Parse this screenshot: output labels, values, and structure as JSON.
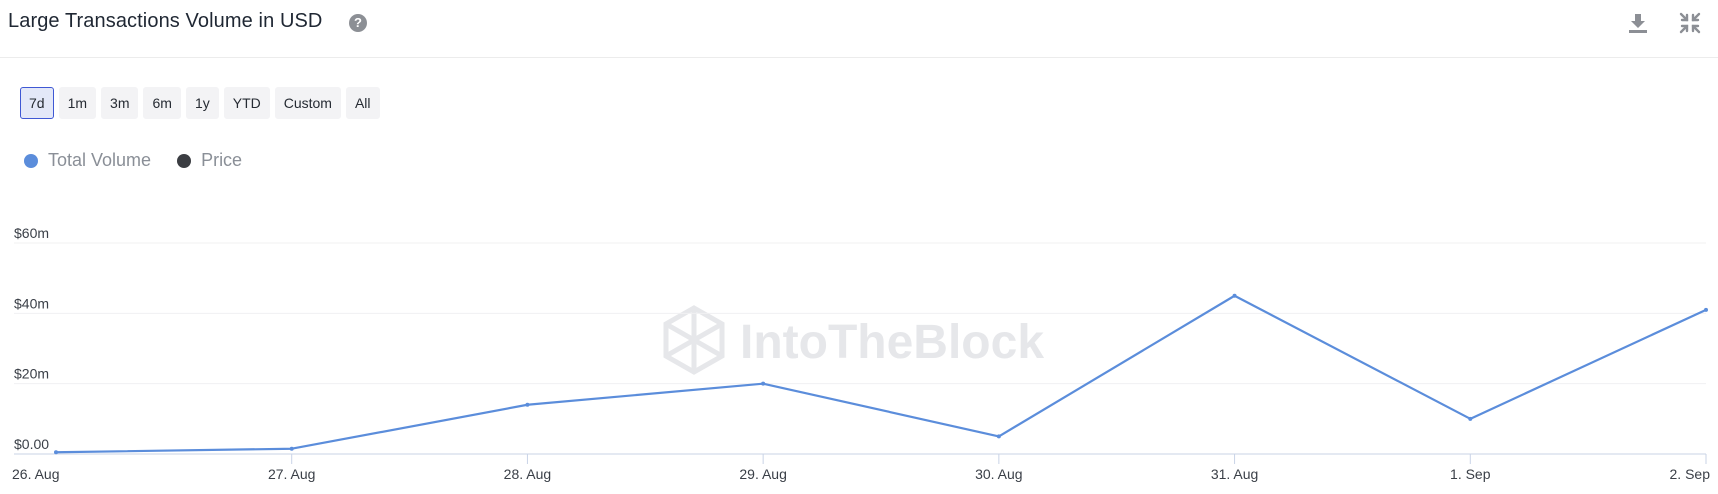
{
  "header": {
    "title": "Large Transactions Volume in USD",
    "help_icon": "question-circle-icon",
    "download_icon": "download-icon",
    "collapse_icon": "collapse-arrows-icon"
  },
  "ranges": [
    {
      "label": "7d",
      "active": true
    },
    {
      "label": "1m",
      "active": false
    },
    {
      "label": "3m",
      "active": false
    },
    {
      "label": "6m",
      "active": false
    },
    {
      "label": "1y",
      "active": false
    },
    {
      "label": "YTD",
      "active": false
    },
    {
      "label": "Custom",
      "active": false
    },
    {
      "label": "All",
      "active": false
    }
  ],
  "legend": [
    {
      "label": "Total Volume",
      "color": "#5b8ddb"
    },
    {
      "label": "Price",
      "color": "#3b3d42"
    }
  ],
  "watermark": "IntoTheBlock",
  "chart_data": {
    "type": "line",
    "categories": [
      "26. Aug",
      "27. Aug",
      "28. Aug",
      "29. Aug",
      "30. Aug",
      "31. Aug",
      "1. Sep",
      "2. Sep"
    ],
    "series": [
      {
        "name": "Total Volume",
        "color": "#5b8ddb",
        "values": [
          0.5,
          1.5,
          14,
          20,
          5,
          45,
          10,
          41
        ]
      }
    ],
    "y_ticks": [
      {
        "value": 0,
        "label": "$0.00"
      },
      {
        "value": 20,
        "label": "$20m"
      },
      {
        "value": 40,
        "label": "$40m"
      },
      {
        "value": 60,
        "label": "$60m"
      }
    ],
    "ylim": [
      0,
      60
    ],
    "grid": true
  }
}
